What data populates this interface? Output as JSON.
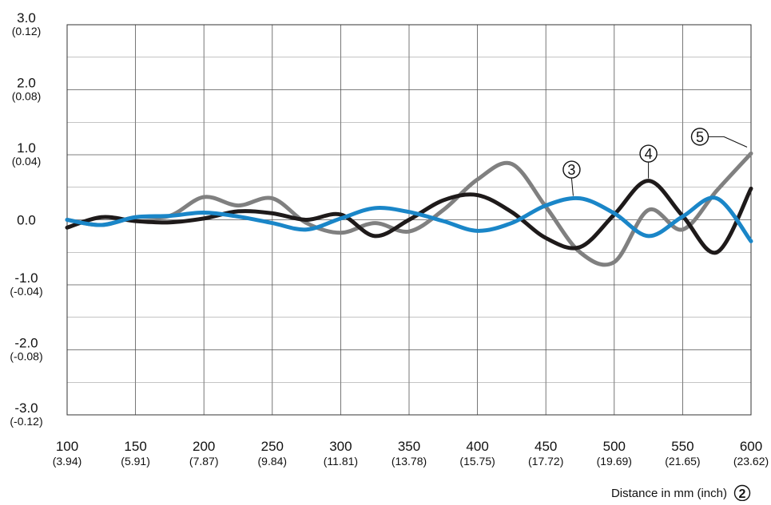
{
  "chart_data": {
    "type": "line",
    "xlabel": "Distance in mm (inch)",
    "xlabel_marker": "2",
    "ylabel": "",
    "xlim": [
      100,
      600
    ],
    "ylim": [
      -3.0,
      3.0
    ],
    "grid": true,
    "x_ticks": [
      {
        "value": 100,
        "label": "100",
        "sublabel": "(3.94)"
      },
      {
        "value": 150,
        "label": "150",
        "sublabel": "(5.91)"
      },
      {
        "value": 200,
        "label": "200",
        "sublabel": "(7.87)"
      },
      {
        "value": 250,
        "label": "250",
        "sublabel": "(9.84)"
      },
      {
        "value": 300,
        "label": "300",
        "sublabel": "(11.81)"
      },
      {
        "value": 350,
        "label": "350",
        "sublabel": "(13.78)"
      },
      {
        "value": 400,
        "label": "400",
        "sublabel": "(15.75)"
      },
      {
        "value": 450,
        "label": "450",
        "sublabel": "(17.72)"
      },
      {
        "value": 500,
        "label": "500",
        "sublabel": "(19.69)"
      },
      {
        "value": 550,
        "label": "550",
        "sublabel": "(21.65)"
      },
      {
        "value": 600,
        "label": "600",
        "sublabel": "(23.62)"
      }
    ],
    "y_ticks": [
      {
        "value": 3.0,
        "label": "3.0",
        "sublabel": "(0.12)"
      },
      {
        "value": 2.0,
        "label": "2.0",
        "sublabel": "(0.08)"
      },
      {
        "value": 1.0,
        "label": "1.0",
        "sublabel": "(0.04)"
      },
      {
        "value": 0.0,
        "label": "0.0",
        "sublabel": ""
      },
      {
        "value": -1.0,
        "label": "-1.0",
        "sublabel": "(-0.04)"
      },
      {
        "value": -2.0,
        "label": "-2.0",
        "sublabel": "(-0.08)"
      },
      {
        "value": -3.0,
        "label": "-3.0",
        "sublabel": "(-0.12)"
      }
    ],
    "series": [
      {
        "marker": "3",
        "color": "#1a86c8",
        "label_anchor": {
          "x": 470,
          "y": 0.33
        },
        "x": [
          100,
          125,
          150,
          175,
          200,
          225,
          250,
          275,
          300,
          325,
          350,
          375,
          400,
          425,
          450,
          475,
          500,
          525,
          550,
          575,
          600
        ],
        "y": [
          0.0,
          -0.08,
          0.04,
          0.06,
          0.11,
          0.05,
          -0.05,
          -0.15,
          0.02,
          0.18,
          0.12,
          -0.02,
          -0.17,
          -0.05,
          0.22,
          0.33,
          0.1,
          -0.25,
          0.05,
          0.33,
          -0.33
        ]
      },
      {
        "marker": "4",
        "color": "#1e1a1a",
        "label_anchor": {
          "x": 525,
          "y": 0.6
        },
        "x": [
          100,
          125,
          150,
          175,
          200,
          225,
          250,
          275,
          300,
          325,
          350,
          375,
          400,
          425,
          450,
          475,
          500,
          525,
          550,
          575,
          600
        ],
        "y": [
          -0.12,
          0.04,
          -0.02,
          -0.04,
          0.02,
          0.13,
          0.1,
          0.0,
          0.08,
          -0.25,
          0.0,
          0.3,
          0.38,
          0.12,
          -0.28,
          -0.42,
          0.08,
          0.6,
          0.06,
          -0.5,
          0.48
        ]
      },
      {
        "marker": "5",
        "color": "#808080",
        "label_anchor": {
          "x": 600,
          "y": 1.02
        },
        "x": [
          100,
          125,
          150,
          175,
          200,
          225,
          250,
          275,
          300,
          325,
          350,
          375,
          400,
          425,
          450,
          475,
          500,
          525,
          550,
          575,
          600
        ],
        "y": [
          0.0,
          -0.08,
          0.04,
          0.06,
          0.35,
          0.22,
          0.33,
          -0.05,
          -0.2,
          -0.05,
          -0.18,
          0.15,
          0.62,
          0.86,
          0.2,
          -0.5,
          -0.65,
          0.15,
          -0.15,
          0.45,
          1.02
        ]
      }
    ]
  }
}
